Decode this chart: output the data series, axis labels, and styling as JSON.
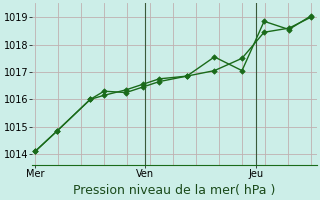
{
  "xlabel": "Pression niveau de la mer( hPa )",
  "background_color": "#cceee8",
  "grid_color": "#c0b0b0",
  "line_color": "#1a6b1a",
  "spine_color": "#1a6b1a",
  "ylim": [
    1013.6,
    1019.5
  ],
  "yticks": [
    1014,
    1015,
    1016,
    1017,
    1018,
    1019
  ],
  "xtick_labels": [
    "Mer",
    "Ven",
    "Jeu"
  ],
  "xtick_positions": [
    0,
    4,
    8
  ],
  "vline_positions": [
    4,
    8
  ],
  "num_vertical_grid": 12,
  "line1_x": [
    0,
    0.8,
    2,
    2.5,
    3.3,
    3.9,
    4.5,
    5.5,
    6.5,
    7.5,
    8.3,
    9.2,
    10
  ],
  "line1_y": [
    1014.1,
    1014.85,
    1016.0,
    1016.3,
    1016.25,
    1016.45,
    1016.65,
    1016.85,
    1017.05,
    1017.5,
    1018.45,
    1018.6,
    1019.0
  ],
  "line2_x": [
    0,
    0.8,
    2,
    2.5,
    3.3,
    3.9,
    4.5,
    5.5,
    6.5,
    7.5,
    8.3,
    9.2,
    10
  ],
  "line2_y": [
    1014.1,
    1014.85,
    1016.0,
    1016.15,
    1016.35,
    1016.55,
    1016.75,
    1016.85,
    1017.55,
    1017.05,
    1018.85,
    1018.55,
    1019.05
  ],
  "marker": "D",
  "markersize": 2.8,
  "linewidth": 1.0,
  "xlabel_fontsize": 9,
  "tick_fontsize": 7
}
